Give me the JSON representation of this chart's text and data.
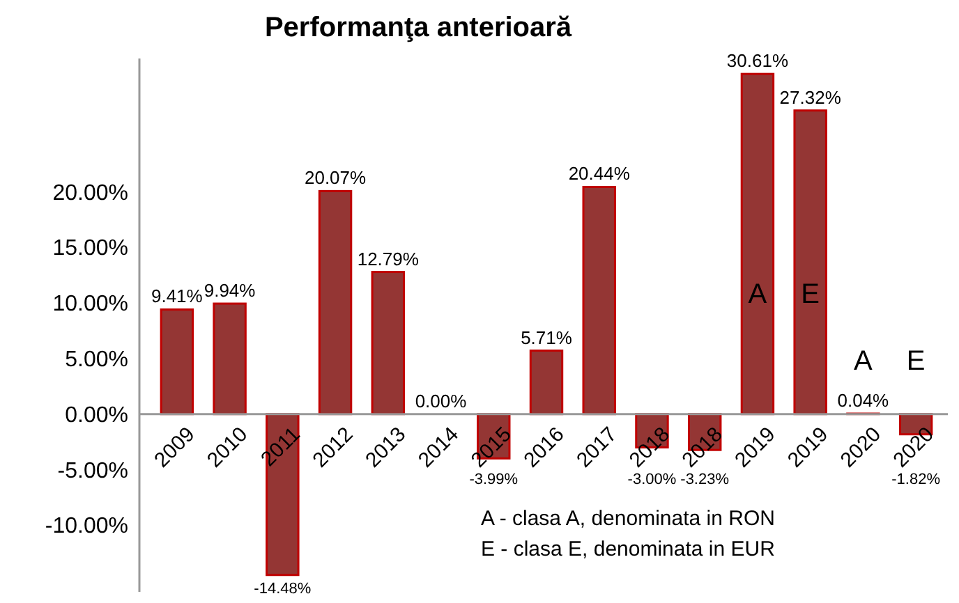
{
  "chart_data": {
    "type": "bar",
    "title": "Performanţa anterioară",
    "categories": [
      "2009",
      "2010",
      "2011",
      "2012",
      "2013",
      "2014",
      "2015",
      "2016",
      "2017",
      "2018",
      "2018",
      "2019",
      "2019",
      "2020",
      "2020"
    ],
    "values": [
      9.41,
      9.94,
      -14.48,
      20.07,
      12.79,
      0.0,
      -3.99,
      5.71,
      20.44,
      -3.0,
      -3.23,
      30.61,
      27.32,
      0.04,
      -1.82
    ],
    "value_labels": [
      "9.41%",
      "9.94%",
      "-14.48%",
      "20.07%",
      "12.79%",
      "0.00%",
      "-3.99%",
      "5.71%",
      "20.44%",
      "-3.00%",
      "-3.23%",
      "30.61%",
      "27.32%",
      "0.04%",
      "-1.82%"
    ],
    "color": "#943634",
    "ylim": [
      -16,
      32
    ],
    "yticks": [
      {
        "value": -10,
        "label": "-10.00%"
      },
      {
        "value": -5,
        "label": "-5.00%"
      },
      {
        "value": 0,
        "label": "0.00%"
      },
      {
        "value": 5,
        "label": "5.00%"
      },
      {
        "value": 10,
        "label": "10.00%"
      },
      {
        "value": 15,
        "label": "15.00%"
      },
      {
        "value": 20,
        "label": "20.00%"
      }
    ],
    "grid": false,
    "annotations": [
      "A",
      "E",
      "A",
      "E",
      "A - clasa A, denominata in RON",
      "E - clasa E, denominata in EUR"
    ]
  }
}
